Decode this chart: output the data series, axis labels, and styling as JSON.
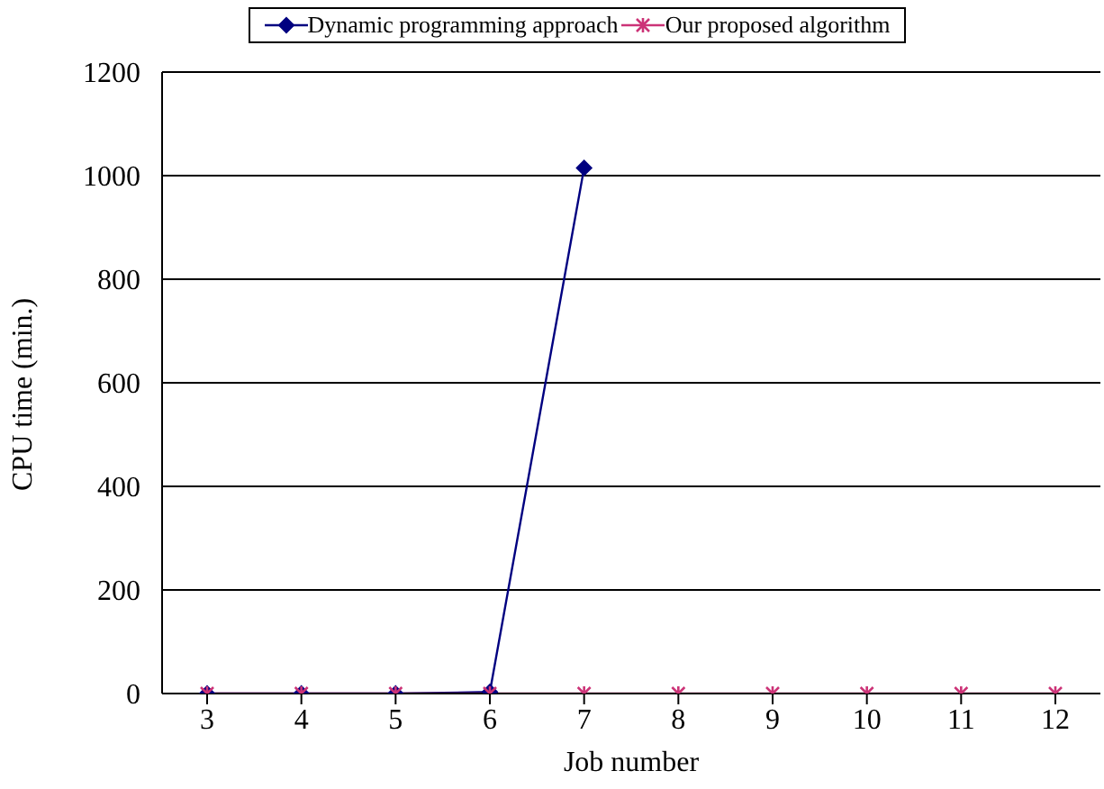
{
  "chart_data": {
    "type": "line",
    "xlabel": "Job number",
    "ylabel": "CPU time (min.)",
    "categories": [
      "3",
      "4",
      "5",
      "6",
      "7",
      "8",
      "9",
      "10",
      "11",
      "12"
    ],
    "series": [
      {
        "name": "Dynamic programming approach",
        "color": "#000080",
        "marker": "diamond",
        "values": [
          0,
          0,
          0,
          3,
          1015,
          null,
          null,
          null,
          null,
          null
        ]
      },
      {
        "name": "Our proposed algorithm",
        "color": "#cc3377",
        "marker": "cross",
        "values": [
          0,
          0,
          0,
          0,
          0,
          0,
          0,
          0,
          0,
          0
        ]
      }
    ],
    "ylim": [
      0,
      1200
    ],
    "yticks": [
      0,
      200,
      400,
      600,
      800,
      1000,
      1200
    ],
    "grid": "y",
    "legend": "top"
  }
}
